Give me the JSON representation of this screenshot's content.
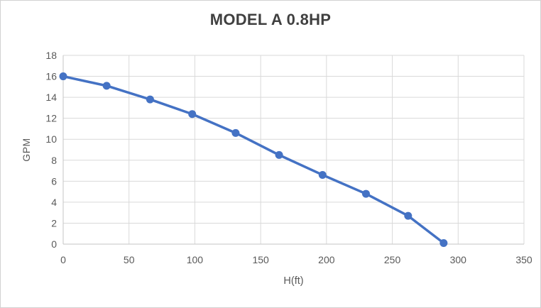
{
  "chart_data": {
    "type": "line",
    "title": "MODEL A 0.8HP",
    "xlabel": "H(ft)",
    "ylabel": "GPM",
    "x": [
      0,
      33,
      66,
      98,
      131,
      164,
      197,
      230,
      262,
      289
    ],
    "y": [
      16,
      15.1,
      13.8,
      12.4,
      10.6,
      8.5,
      6.6,
      4.8,
      2.7,
      0.1
    ],
    "xlim": [
      0,
      350
    ],
    "ylim": [
      0,
      18
    ],
    "xticks": [
      0,
      50,
      100,
      150,
      200,
      250,
      300,
      350
    ],
    "yticks": [
      0,
      2,
      4,
      6,
      8,
      10,
      12,
      14,
      16,
      18
    ],
    "grid": true,
    "legend": false,
    "series_name": "MODEL A 0.8HP",
    "marker": "circle",
    "colors": {
      "line": "#4472C4",
      "marker": "#4472C4",
      "gridline": "#D9D9D9",
      "axis_line": "#C6C6C6",
      "title_text": "#404040",
      "tick_text": "#595959",
      "background": "#FFFFFF",
      "border": "#D2D2D2"
    }
  }
}
